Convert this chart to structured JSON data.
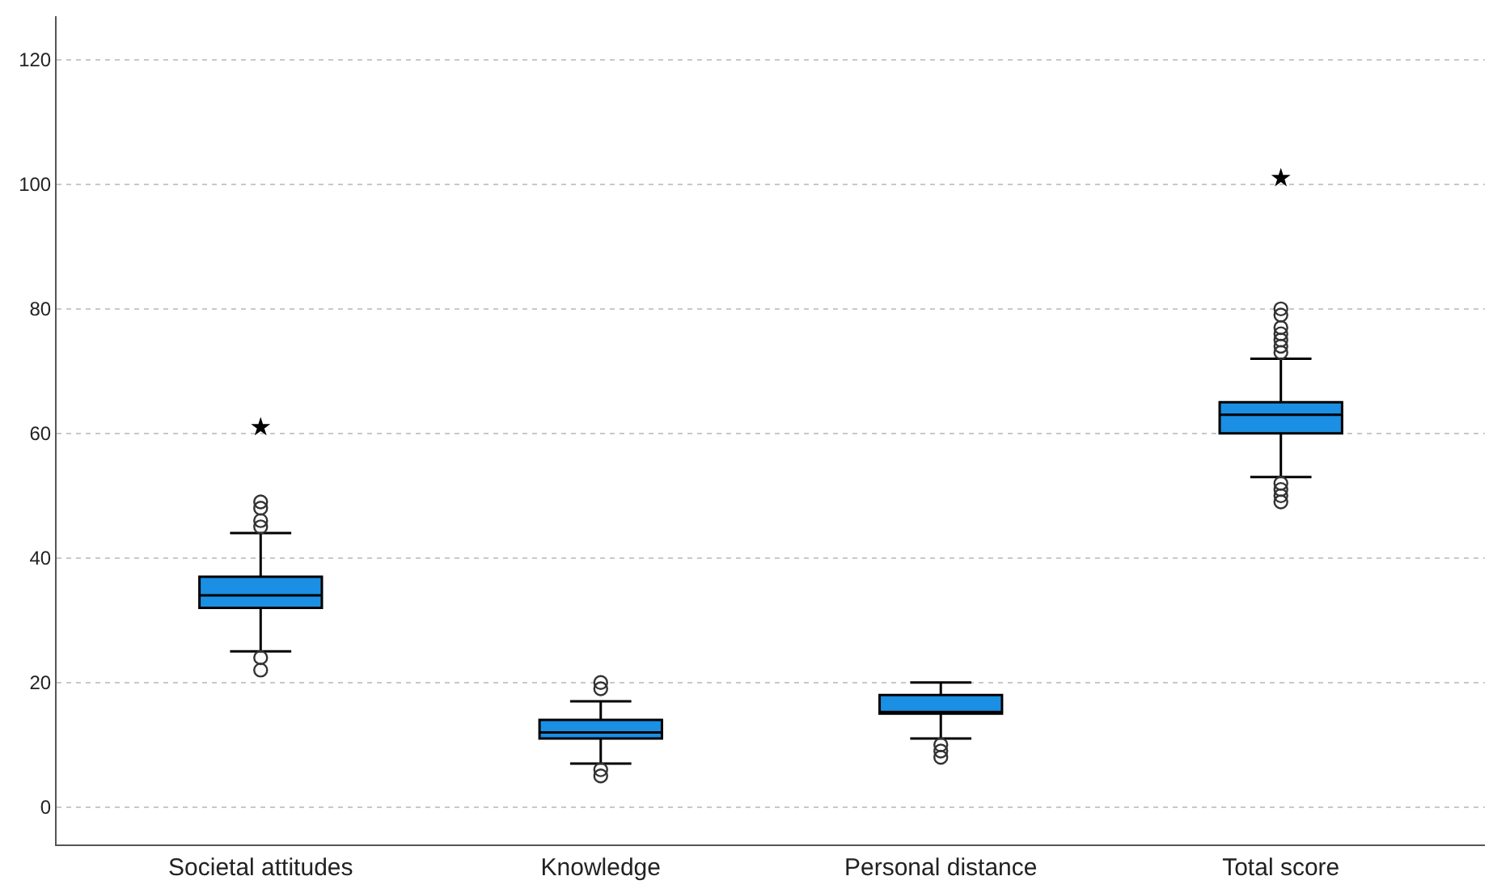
{
  "chart_data": {
    "type": "box",
    "categories": [
      "Societal attitudes",
      "Knowledge",
      "Personal distance",
      "Total score"
    ],
    "boxes": [
      {
        "low": 25,
        "q1": 32,
        "median": 34,
        "q3": 37,
        "high": 44,
        "outliers": [
          22,
          24,
          45,
          46,
          48,
          49,
          61
        ]
      },
      {
        "low": 7,
        "q1": 11,
        "median": 12,
        "q3": 14,
        "high": 17,
        "outliers": [
          5,
          6,
          19,
          20
        ]
      },
      {
        "low": 11,
        "q1": 15,
        "median": 15,
        "q3": 18,
        "high": 20,
        "outliers": [
          8,
          9,
          10
        ]
      },
      {
        "low": 53,
        "q1": 60,
        "median": 63,
        "q3": 65,
        "high": 72,
        "outliers": [
          49,
          50,
          51,
          52,
          73,
          74,
          75,
          76,
          77,
          79,
          80,
          101
        ]
      }
    ],
    "color": "#1a8fe3",
    "ylim": [
      -6,
      127
    ],
    "yticks": [
      0,
      20,
      40,
      60,
      80,
      100,
      120
    ],
    "grid": "y"
  }
}
